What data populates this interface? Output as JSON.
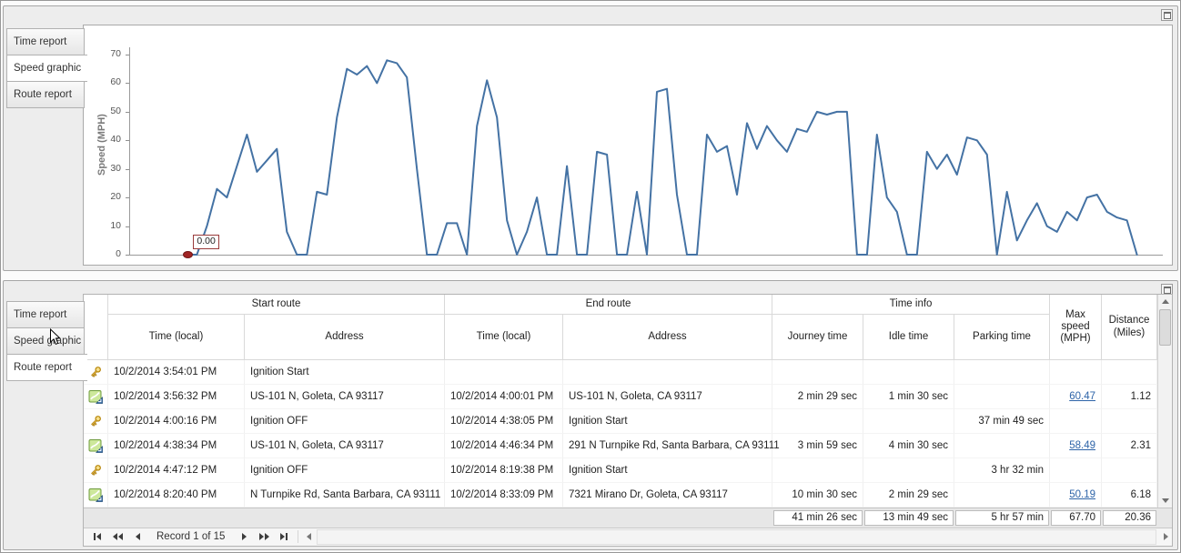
{
  "colors": {
    "chart_line": "#4472a4",
    "link": "#2e64a8",
    "marker": "#8b1f1f",
    "panel_bg": "#ededed"
  },
  "chart_data": {
    "type": "line",
    "title": "",
    "ylabel": "Speed (MPH)",
    "xlabel": "",
    "ylim": [
      0,
      70
    ],
    "yticks": [
      0,
      10,
      20,
      30,
      40,
      50,
      60,
      70
    ],
    "grid": false,
    "legend": "none",
    "line_color": "#4472a4",
    "annotation_text": "0.00",
    "x_start_frac": 0.055,
    "x_end_frac": 0.975,
    "values": [
      0,
      0,
      10,
      23,
      20,
      31,
      42,
      29,
      33,
      37,
      8,
      0,
      0,
      22,
      21,
      48,
      65,
      63,
      66,
      60,
      68,
      67,
      62,
      30,
      0,
      0,
      11,
      11,
      0,
      45,
      61,
      48,
      12,
      0,
      8,
      20,
      0,
      0,
      31,
      0,
      0,
      36,
      35,
      0,
      0,
      22,
      0,
      57,
      58,
      21,
      0,
      0,
      42,
      36,
      38,
      21,
      46,
      37,
      45,
      40,
      36,
      44,
      43,
      50,
      49,
      50,
      50,
      0,
      0,
      42,
      20,
      15,
      0,
      0,
      36,
      30,
      35,
      28,
      41,
      40,
      35,
      0,
      22,
      5,
      12,
      18,
      10,
      8,
      15,
      12,
      20,
      21,
      15,
      13,
      12,
      0
    ]
  },
  "top_panel": {
    "selected_tab": "Speed graphic",
    "tabs": [
      {
        "label": "Time report"
      },
      {
        "label": "Speed graphic"
      },
      {
        "label": "Route report"
      }
    ]
  },
  "bottom_panel": {
    "selected_tab": "Route report",
    "tabs": [
      {
        "label": "Time report"
      },
      {
        "label": "Speed graphic"
      },
      {
        "label": "Route report"
      }
    ],
    "grid": {
      "group_headers": [
        {
          "label": "Start route"
        },
        {
          "label": "End route"
        },
        {
          "label": "Time info"
        }
      ],
      "columns": [
        {
          "label": "Time (local)"
        },
        {
          "label": "Address"
        },
        {
          "label": "Time (local)"
        },
        {
          "label": "Address"
        },
        {
          "label": "Journey time"
        },
        {
          "label": "Idle time"
        },
        {
          "label": "Parking time"
        },
        {
          "label": "Max speed (MPH)"
        },
        {
          "label": "Distance (Miles)"
        }
      ],
      "rows": [
        {
          "icon": "key-icon",
          "start_time": "10/2/2014 3:54:01 PM",
          "start_address": "Ignition Start",
          "end_time": "",
          "end_address": "",
          "journey": "",
          "idle": "",
          "parking": "",
          "max_speed": "",
          "distance": ""
        },
        {
          "icon": "route-icon",
          "start_time": "10/2/2014 3:56:32 PM",
          "start_address": "US-101 N, Goleta, CA 93117",
          "end_time": "10/2/2014 4:00:01 PM",
          "end_address": "US-101 N, Goleta, CA 93117",
          "journey": "2 min 29 sec",
          "idle": "1 min 30 sec",
          "parking": "",
          "max_speed": "60.47",
          "distance": "1.12"
        },
        {
          "icon": "key-icon",
          "start_time": "10/2/2014 4:00:16 PM",
          "start_address": "Ignition OFF",
          "end_time": "10/2/2014 4:38:05 PM",
          "end_address": "Ignition Start",
          "journey": "",
          "idle": "",
          "parking": "37 min 49 sec",
          "max_speed": "",
          "distance": ""
        },
        {
          "icon": "route-icon",
          "start_time": "10/2/2014 4:38:34 PM",
          "start_address": "US-101 N, Goleta, CA 93117",
          "end_time": "10/2/2014 4:46:34 PM",
          "end_address": "291 N Turnpike Rd, Santa Barbara, CA 93111",
          "journey": "3 min 59 sec",
          "idle": "4 min 30 sec",
          "parking": "",
          "max_speed": "58.49",
          "distance": "2.31"
        },
        {
          "icon": "key-icon",
          "start_time": "10/2/2014 4:47:12 PM",
          "start_address": "Ignition OFF",
          "end_time": "10/2/2014 8:19:38 PM",
          "end_address": "Ignition Start",
          "journey": "",
          "idle": "",
          "parking": "3 hr 32 min",
          "max_speed": "",
          "distance": ""
        },
        {
          "icon": "route-icon",
          "start_time": "10/2/2014 8:20:40 PM",
          "start_address": "N Turnpike Rd, Santa Barbara, CA 93111",
          "end_time": "10/2/2014 8:33:09 PM",
          "end_address": "7321 Mirano Dr, Goleta, CA 93117",
          "journey": "10 min 30 sec",
          "idle": "2 min 29 sec",
          "parking": "",
          "max_speed": "50.19",
          "distance": "6.18"
        }
      ],
      "summary": {
        "journey": "41 min 26 sec",
        "idle": "13 min 49 sec",
        "parking": "5 hr 57 min",
        "max_speed": "67.70",
        "distance": "20.36"
      },
      "navigator": {
        "record_text": "Record 1 of 15"
      }
    }
  }
}
